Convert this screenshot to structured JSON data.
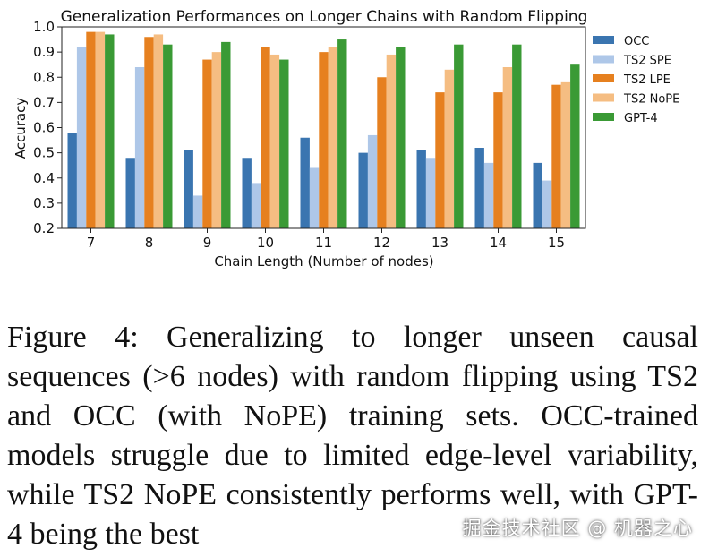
{
  "chart_data": {
    "type": "bar",
    "title": "Generalization Performances on Longer Chains with Random Flipping",
    "xlabel": "Chain Length (Number of nodes)",
    "ylabel": "Accuracy",
    "ylim": [
      0.2,
      1.0
    ],
    "yticks": [
      "0.2",
      "0.3",
      "0.4",
      "0.5",
      "0.6",
      "0.7",
      "0.8",
      "0.9",
      "1.0"
    ],
    "grid": false,
    "legend_position": "right",
    "categories": [
      "7",
      "8",
      "9",
      "10",
      "11",
      "12",
      "13",
      "14",
      "15"
    ],
    "series": [
      {
        "name": "OCC",
        "color": "#3a75b0",
        "values": [
          0.58,
          0.48,
          0.51,
          0.48,
          0.56,
          0.5,
          0.51,
          0.52,
          0.46
        ]
      },
      {
        "name": "TS2 SPE",
        "color": "#aec7e8",
        "values": [
          0.92,
          0.84,
          0.33,
          0.38,
          0.44,
          0.57,
          0.48,
          0.46,
          0.39
        ]
      },
      {
        "name": "TS2 LPE",
        "color": "#e6801f",
        "values": [
          0.98,
          0.96,
          0.87,
          0.92,
          0.9,
          0.8,
          0.74,
          0.74,
          0.77
        ]
      },
      {
        "name": "TS2 NoPE",
        "color": "#f5bd82",
        "values": [
          0.98,
          0.97,
          0.9,
          0.89,
          0.92,
          0.89,
          0.83,
          0.84,
          0.78
        ]
      },
      {
        "name": "GPT-4",
        "color": "#3a9a35",
        "values": [
          0.97,
          0.93,
          0.94,
          0.87,
          0.95,
          0.92,
          0.93,
          0.93,
          0.85
        ]
      }
    ]
  },
  "caption": "Figure 4: Generalizing to longer unseen causal sequences (>6 nodes) with random flipping using TS2 and OCC (with NoPE) training sets. OCC-trained models struggle due to limited edge-level variability, while TS2 NoPE consistently performs well, with GPT-4 being the best",
  "watermark": "掘金技术社区 @ 机器之心"
}
